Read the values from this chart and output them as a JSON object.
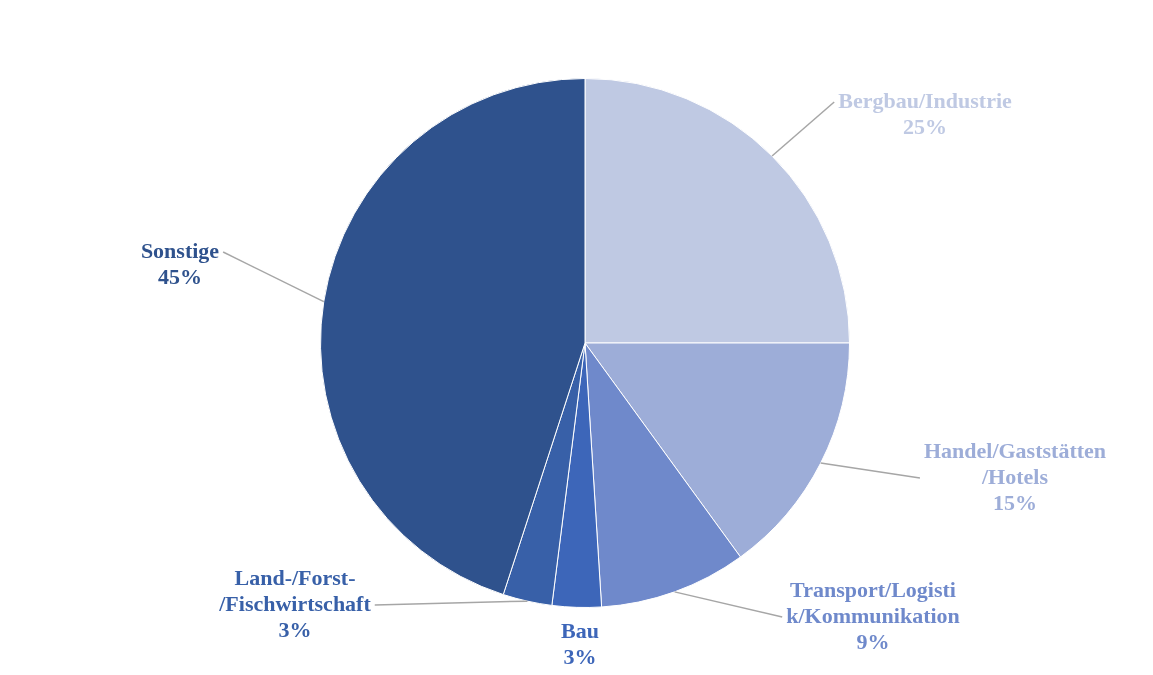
{
  "chart_data": {
    "type": "pie",
    "categories": [
      "Bergbau/Industrie",
      "Handel/Gaststätten\n/Hotels",
      "Transport/Logisti\nk/Kommunikation",
      "Bau",
      "Land-/Forst-\n/Fischwirtschaft",
      "Sonstige"
    ],
    "values": [
      25,
      15,
      9,
      3,
      3,
      45
    ],
    "colors": [
      "#bfc9e3",
      "#9dadd8",
      "#6f89cb",
      "#3d66b9",
      "#3860a8",
      "#2f528d"
    ],
    "value_labels": [
      "25%",
      "15%",
      "9%",
      "3%",
      "3%",
      "45%"
    ],
    "legend": false
  }
}
